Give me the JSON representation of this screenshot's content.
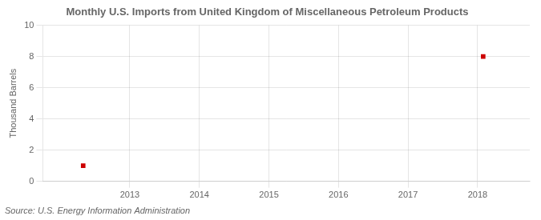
{
  "chart_data": {
    "type": "scatter",
    "title": "Monthly U.S. Imports from United Kingdom of Miscellaneous Petroleum Products",
    "ylabel": "Thousand Barrels",
    "annotations": [
      "Source: U.S. Energy Information Administration"
    ],
    "x": [
      2012.33,
      2018.08
    ],
    "values": [
      1,
      8
    ],
    "color": "#cc0000",
    "marker": "square",
    "xlim": [
      2011.75,
      2018.75
    ],
    "ylim": [
      0,
      10
    ],
    "xticks": [
      2013,
      2014,
      2015,
      2016,
      2017,
      2018
    ],
    "yticks": [
      0,
      2,
      4,
      6,
      8,
      10
    ],
    "grid": true
  }
}
